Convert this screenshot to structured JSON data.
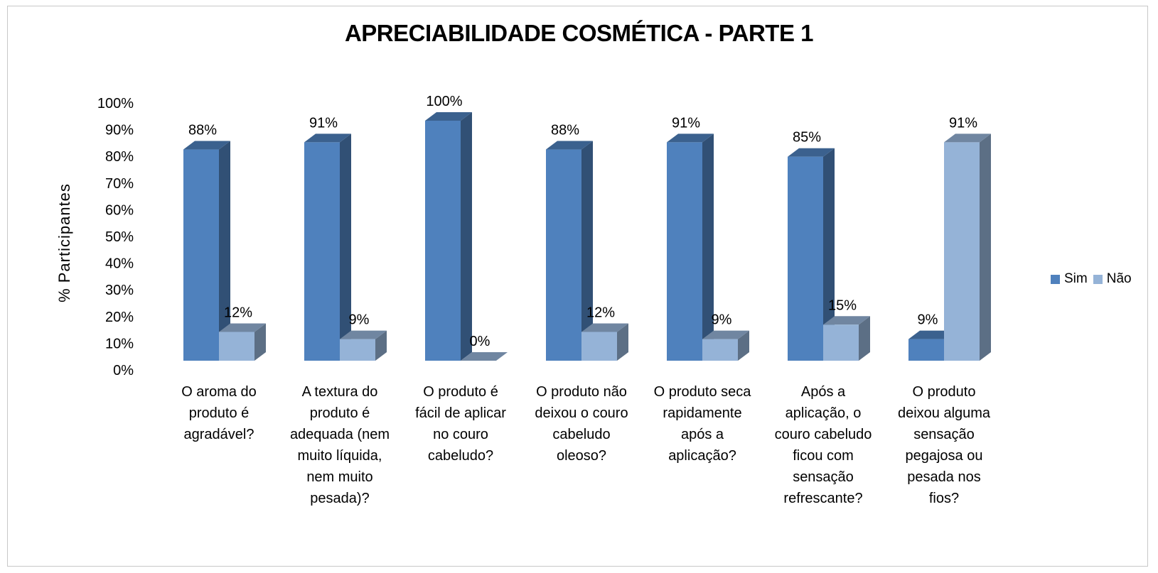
{
  "chart_data": {
    "type": "bar",
    "title": "APRECIABILIDADE COSMÉTICA - PARTE 1",
    "ylabel": "% Participantes",
    "ylim": [
      0,
      100
    ],
    "yticks": [
      "0%",
      "10%",
      "20%",
      "30%",
      "40%",
      "50%",
      "60%",
      "70%",
      "80%",
      "90%",
      "100%"
    ],
    "grid": false,
    "legend_position": "right",
    "categories": [
      "O aroma do\nproduto é\nagradável?",
      "A textura do\nproduto é\nadequada (nem\nmuito líquida,\nnem muito\npesada)?",
      "O produto é\nfácil de aplicar\nno couro\ncabeludo?",
      "O produto não\ndeixou o couro\ncabeludo\noleoso?",
      "O produto seca\nrapidamente\napós a\naplicação?",
      "Após a\naplicação, o\ncouro cabeludo\nficou com\nsensação\nrefrescante?",
      "O produto\ndeixou alguma\nsensação\npegajosa ou\npesada nos\nfios?"
    ],
    "series": [
      {
        "name": "Sim",
        "color": "#4f81bd",
        "values": [
          88,
          91,
          100,
          88,
          91,
          85,
          9
        ],
        "labels": [
          "88%",
          "91%",
          "100%",
          "88%",
          "91%",
          "85%",
          "9%"
        ]
      },
      {
        "name": "Não",
        "color": "#95b3d7",
        "values": [
          12,
          9,
          0,
          12,
          9,
          15,
          91
        ],
        "labels": [
          "12%",
          "9%",
          "0%",
          "12%",
          "9%",
          "15%",
          "91%"
        ]
      }
    ]
  }
}
